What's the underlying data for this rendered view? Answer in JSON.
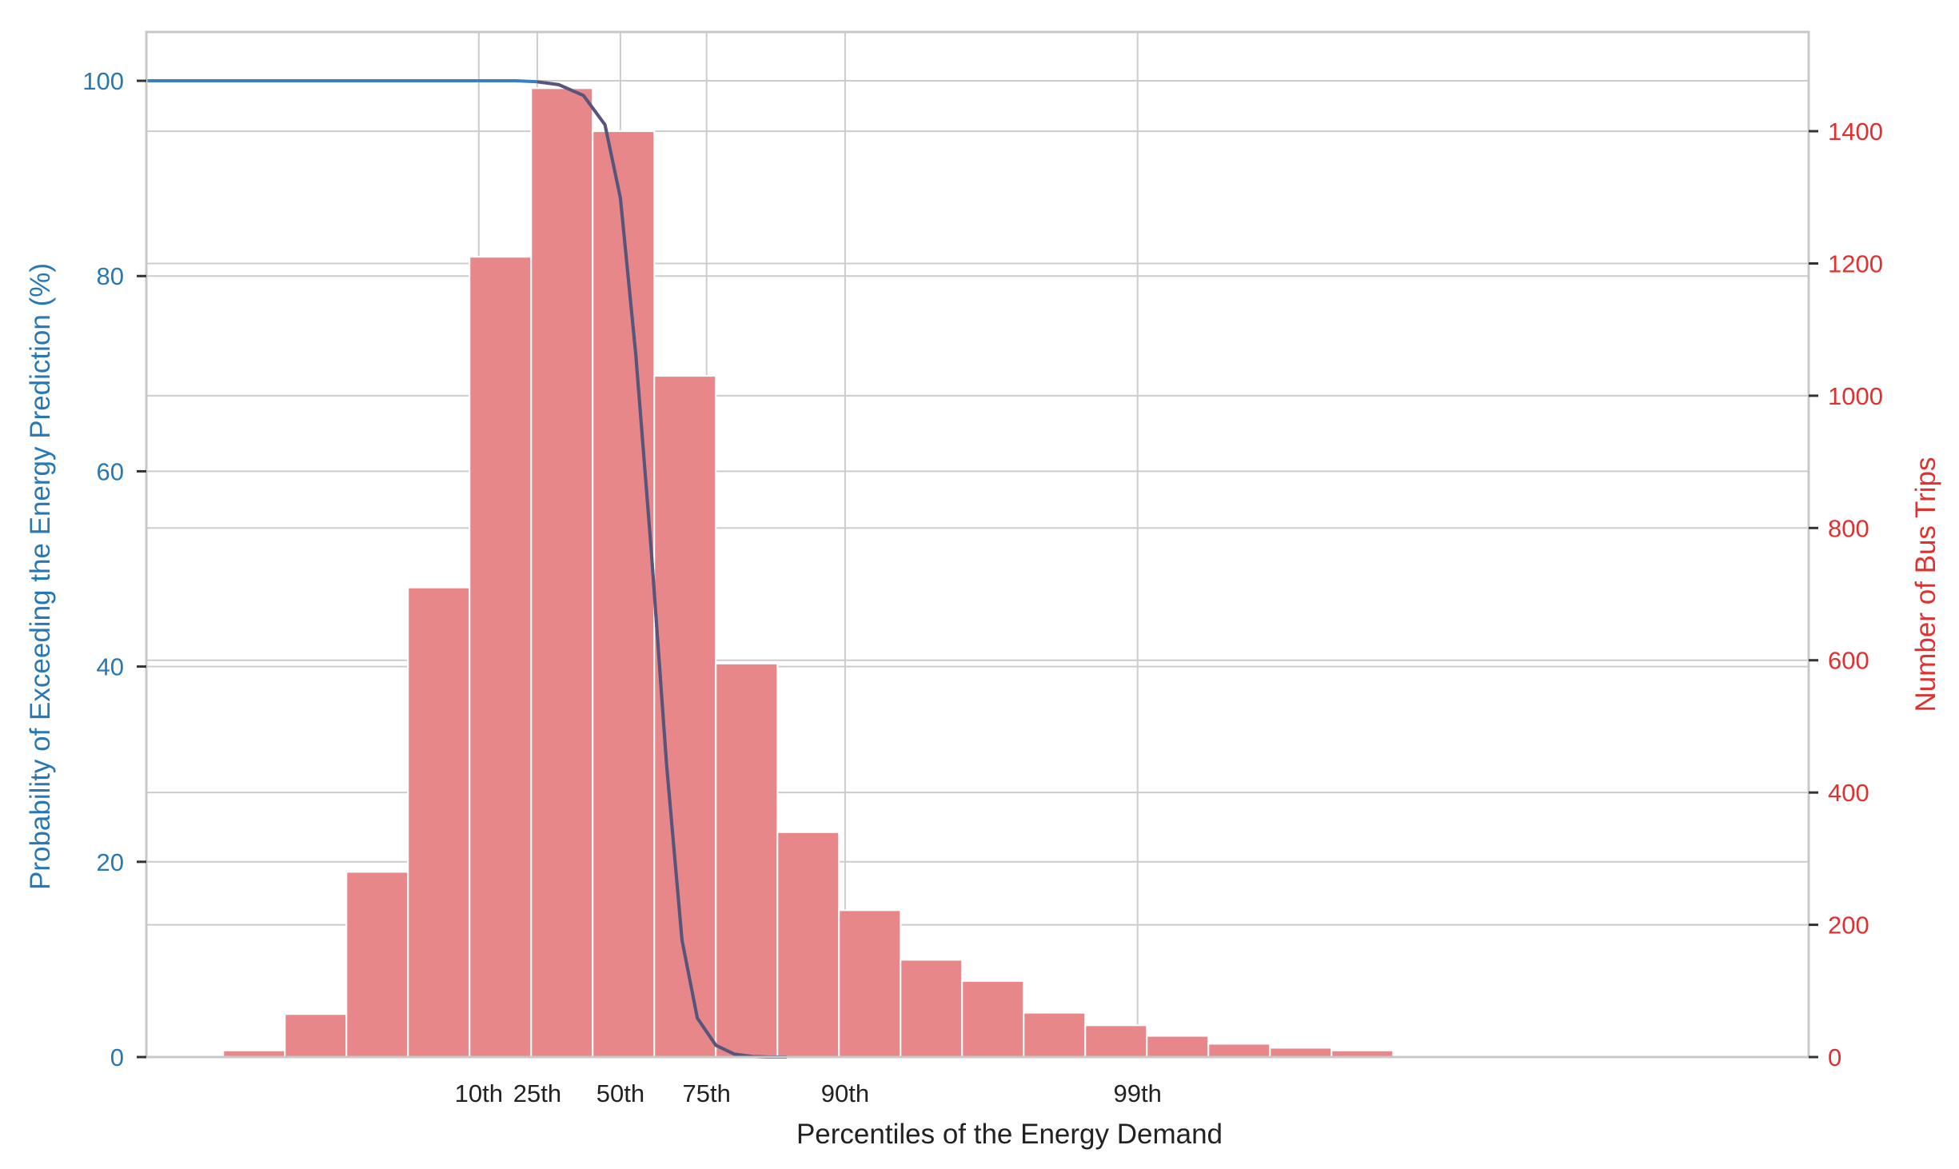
{
  "colors": {
    "line": "#3a7fc0",
    "line_overlap": "#5a5478",
    "bars": "#e8878a",
    "left_axis": "#2878b5",
    "right_axis": "#e03030",
    "grid": "#cccccc",
    "frame": "#c8c8c8"
  },
  "chart_data": {
    "type": "bar",
    "xlabel": "Percentiles of the Energy Demand",
    "ylabel_left": "Probability of Exceeding the Energy Prediction (%)",
    "ylabel_right": "Number of Bus Trips",
    "x_range": [
      -0.5,
      26.5
    ],
    "ylim_left": [
      0,
      105
    ],
    "ylim_right": [
      0,
      1550
    ],
    "yticks_left": [
      0,
      20,
      40,
      60,
      80,
      100
    ],
    "yticks_right": [
      0,
      200,
      400,
      600,
      800,
      1000,
      1200,
      1400
    ],
    "xticks": [
      {
        "x": 4.9,
        "label": "10th"
      },
      {
        "x": 5.85,
        "label": "25th"
      },
      {
        "x": 7.2,
        "label": "50th"
      },
      {
        "x": 8.6,
        "label": "75th"
      },
      {
        "x": 10.85,
        "label": "90th"
      },
      {
        "x": 15.6,
        "label": "99th"
      }
    ],
    "grid": true,
    "histogram": {
      "name": "Number of Bus Trips",
      "bin_width": 1,
      "bin_start": 0.75,
      "counts": [
        10,
        65,
        280,
        710,
        1210,
        1465,
        1400,
        1030,
        595,
        340,
        222,
        147,
        115,
        67,
        48,
        32,
        20,
        14,
        10
      ]
    },
    "exceedance_line": {
      "name": "Probability of Exceeding the Energy Prediction (%)",
      "x": [
        -0.5,
        2.0,
        4.0,
        5.5,
        5.85,
        6.2,
        6.6,
        6.95,
        7.2,
        7.45,
        7.7,
        7.95,
        8.2,
        8.45,
        8.75,
        9.05,
        9.35,
        9.6,
        9.9
      ],
      "y": [
        100,
        100,
        100,
        100,
        99.9,
        99.6,
        98.5,
        95.5,
        88,
        72,
        52,
        30,
        12,
        4,
        1.2,
        0.3,
        0.05,
        0,
        0
      ]
    }
  }
}
